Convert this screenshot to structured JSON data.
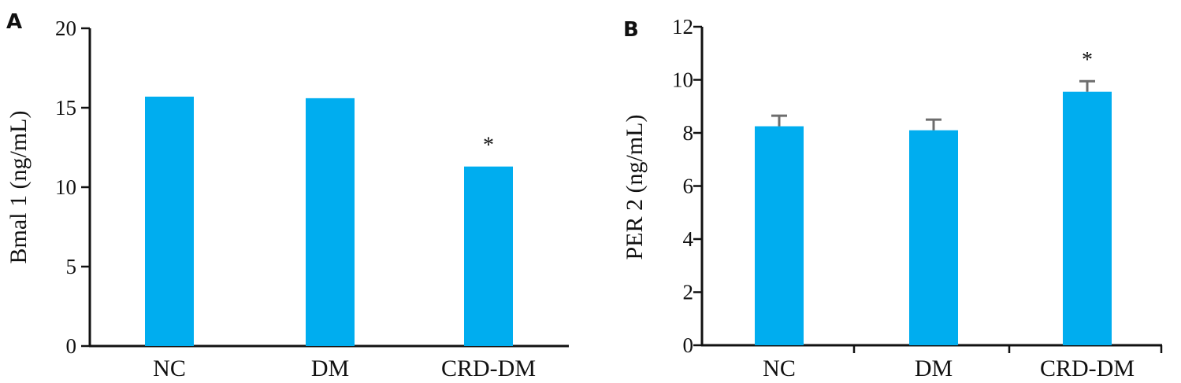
{
  "chart_data": [
    {
      "panel": "A",
      "type": "bar",
      "categories": [
        "NC",
        "DM",
        "CRD-DM"
      ],
      "values": [
        15.7,
        15.6,
        11.3
      ],
      "errors": [
        0,
        0,
        0
      ],
      "annotations": [
        "",
        "",
        "*"
      ],
      "ylabel": "Bmal 1 (ng/mL)",
      "xlabel": "",
      "ylim": [
        0,
        20
      ],
      "yticks": [
        0,
        5,
        10,
        15,
        20
      ],
      "ytick_labels": [
        "0",
        "5",
        "10",
        "15",
        "20"
      ],
      "bar_color": "#00ADEF",
      "grid": false
    },
    {
      "panel": "B",
      "type": "bar",
      "categories": [
        "NC",
        "DM",
        "CRD-DM"
      ],
      "values": [
        8.25,
        8.1,
        9.55
      ],
      "errors": [
        0.4,
        0.4,
        0.4
      ],
      "annotations": [
        "",
        "",
        "*"
      ],
      "ylabel": "PER 2 (ng/mL)",
      "xlabel": "",
      "ylim": [
        0,
        12
      ],
      "yticks": [
        0,
        2,
        4,
        6,
        8,
        10,
        12
      ],
      "ytick_labels": [
        "0",
        "2",
        "4",
        "6",
        "8",
        "10",
        "12"
      ],
      "bar_color": "#00ADEF",
      "error_color": "#6d6d6d",
      "grid": false
    }
  ]
}
